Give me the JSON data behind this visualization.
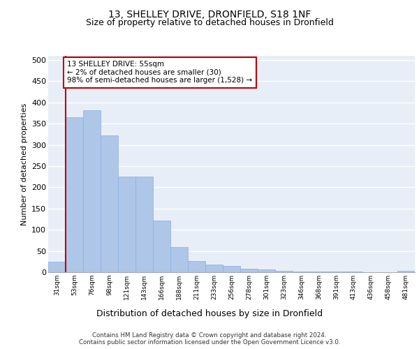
{
  "title1": "13, SHELLEY DRIVE, DRONFIELD, S18 1NF",
  "title2": "Size of property relative to detached houses in Dronfield",
  "xlabel": "Distribution of detached houses by size in Dronfield",
  "ylabel": "Number of detached properties",
  "footer1": "Contains HM Land Registry data © Crown copyright and database right 2024.",
  "footer2": "Contains public sector information licensed under the Open Government Licence v3.0.",
  "annotation_line1": "13 SHELLEY DRIVE: 55sqm",
  "annotation_line2": "← 2% of detached houses are smaller (30)",
  "annotation_line3": "98% of semi-detached houses are larger (1,528) →",
  "bar_color": "#aec6e8",
  "bar_edge_color": "#8aafe0",
  "highlight_color": "#c00000",
  "categories": [
    "31sqm",
    "53sqm",
    "76sqm",
    "98sqm",
    "121sqm",
    "143sqm",
    "166sqm",
    "188sqm",
    "211sqm",
    "233sqm",
    "256sqm",
    "278sqm",
    "301sqm",
    "323sqm",
    "346sqm",
    "368sqm",
    "391sqm",
    "413sqm",
    "436sqm",
    "458sqm",
    "481sqm"
  ],
  "values": [
    25,
    365,
    382,
    322,
    226,
    225,
    122,
    60,
    27,
    18,
    14,
    8,
    6,
    4,
    2,
    2,
    1,
    1,
    0,
    0,
    3
  ],
  "highlight_bar_index": 0,
  "ylim": [
    0,
    510
  ],
  "yticks": [
    0,
    50,
    100,
    150,
    200,
    250,
    300,
    350,
    400,
    450,
    500
  ],
  "plot_bg_color": "#e8eef8",
  "fig_bg_color": "#ffffff"
}
